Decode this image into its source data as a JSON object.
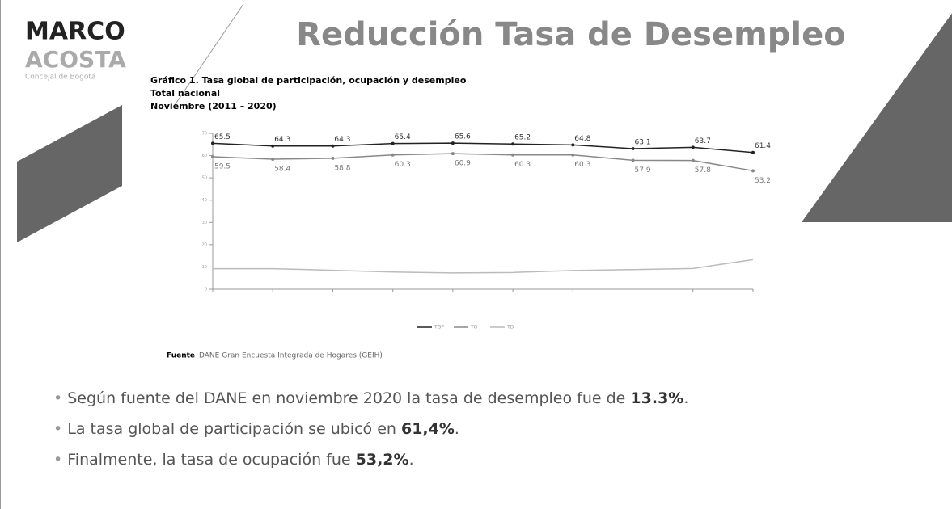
{
  "header": {
    "logo_top": "MARCO",
    "logo_bottom": "ACOSTA",
    "logo_sub": "Concejal de Bogotá",
    "title": "Reducción Tasa de Desempleo"
  },
  "caption": [
    "Gráfico 1. Tasa global de participación, ocupación y desempleo",
    "Total nacional",
    "Noviembre (2011 – 2020)"
  ],
  "chart_data": {
    "type": "line",
    "categories": [
      null,
      null,
      null,
      null,
      null,
      null,
      null,
      null,
      null,
      null
    ],
    "series": [
      {
        "name": "TGP",
        "color": "#222222",
        "values": [
          65.5,
          64.3,
          64.3,
          65.4,
          65.6,
          65.2,
          64.8,
          63.1,
          63.7,
          61.4
        ]
      },
      {
        "name": "TO",
        "color": "#888888",
        "values": [
          59.5,
          58.4,
          58.8,
          60.3,
          60.9,
          60.3,
          60.3,
          57.9,
          57.8,
          53.2
        ]
      },
      {
        "name": "TD",
        "color": "#bbbbbb",
        "values": [
          9.2,
          9.2,
          8.5,
          7.7,
          7.3,
          7.5,
          8.4,
          8.8,
          9.3,
          13.3
        ]
      }
    ],
    "ylim": [
      0,
      70
    ],
    "yticks": [
      0,
      10,
      20,
      30,
      40,
      50,
      60,
      70
    ]
  },
  "source": {
    "label": "Fuente",
    "text": "DANE Gran Encuesta Integrada de Hogares (GEIH)"
  },
  "bullets": [
    {
      "text": "Según fuente del DANE en noviembre 2020 la tasa de desempleo fue de ",
      "bold": "13.3%",
      "end": "."
    },
    {
      "text": "La tasa global de participación se ubicó en ",
      "bold": "61,4%",
      "end": "."
    },
    {
      "text": "Finalmente, la tasa de ocupación fue ",
      "bold": "53,2%",
      "end": "."
    }
  ]
}
